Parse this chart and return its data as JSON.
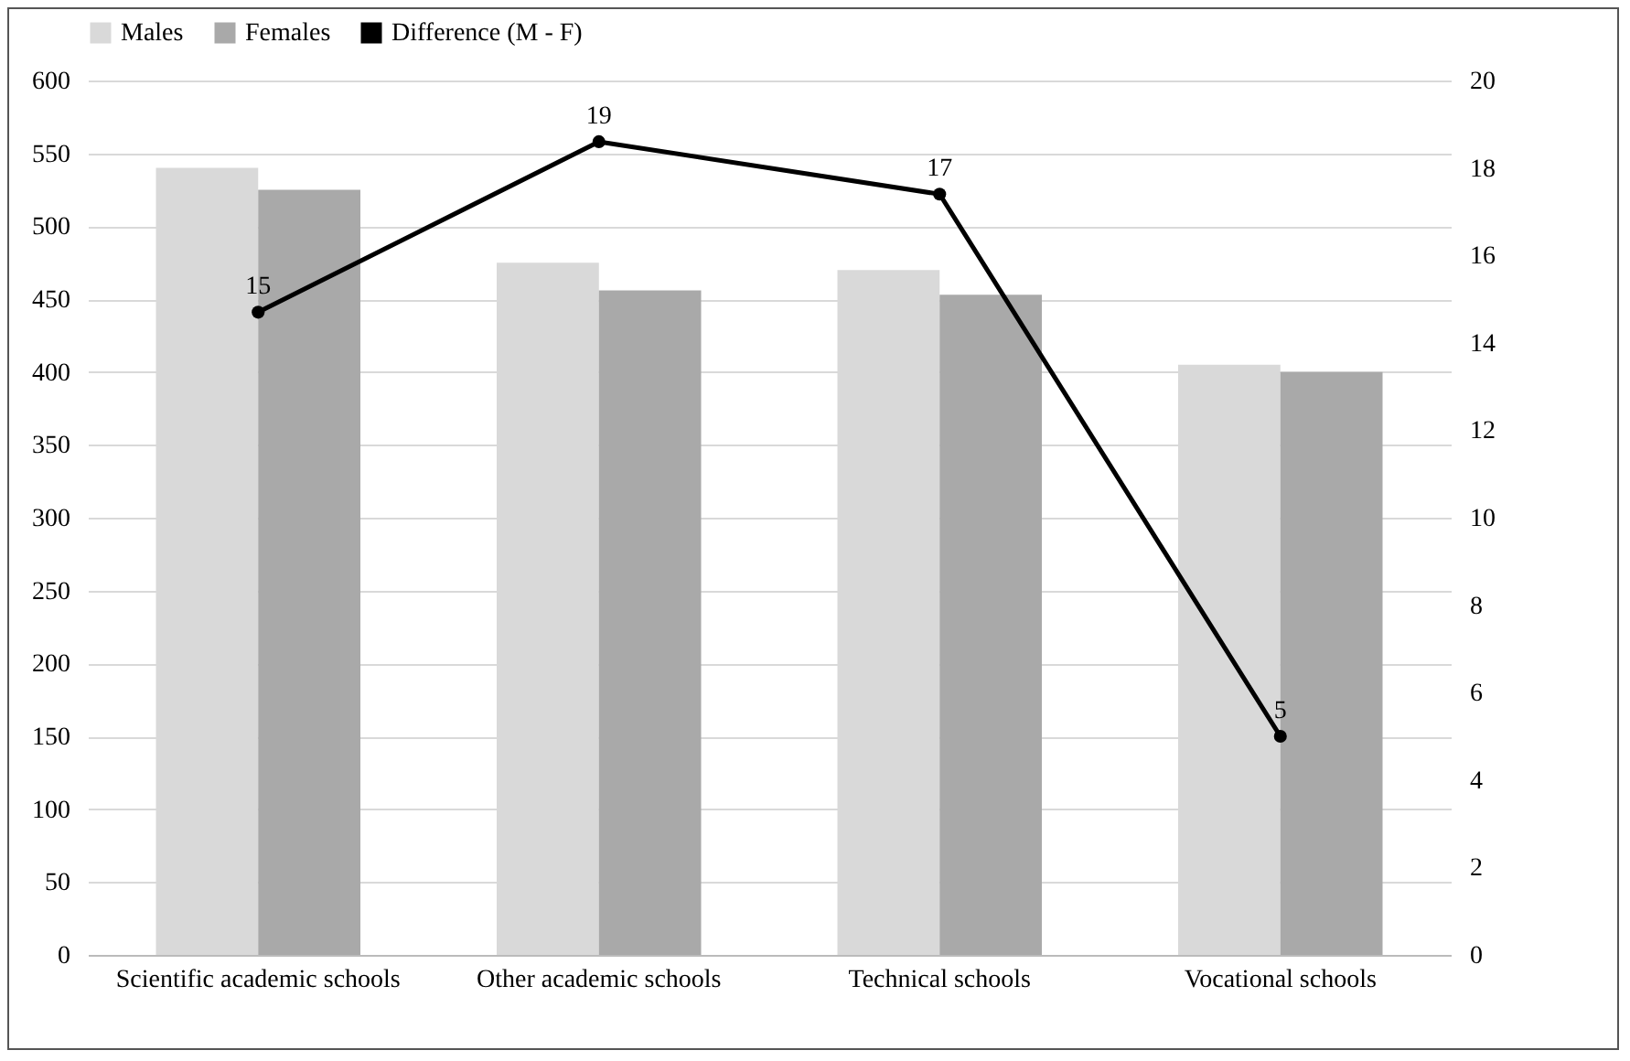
{
  "chart_data": {
    "type": "bar",
    "categories": [
      "Scientific academic schools",
      "Other academic schools",
      "Technical schools",
      "Vocational schools"
    ],
    "series": [
      {
        "name": "Males",
        "color": "#d9d9d9",
        "values": [
          540,
          475,
          470,
          405
        ]
      },
      {
        "name": "Females",
        "color": "#a9a9a9",
        "values": [
          525,
          456,
          453,
          400
        ]
      },
      {
        "name": "Difference (M - F)",
        "type": "line",
        "axis": "y2",
        "color": "#000000",
        "marker": "circle",
        "values": [
          14.7,
          18.6,
          17.4,
          5
        ],
        "value_labels": [
          "15",
          "19",
          "17",
          "5"
        ]
      }
    ],
    "ylim": [
      0,
      600
    ],
    "yticks": [
      0,
      50,
      100,
      150,
      200,
      250,
      300,
      350,
      400,
      450,
      500,
      550,
      600
    ],
    "y2lim": [
      0,
      20
    ],
    "y2ticks": [
      0,
      2,
      4,
      6,
      8,
      10,
      12,
      14,
      16,
      18,
      20
    ],
    "grid": "y",
    "legend": "top"
  }
}
